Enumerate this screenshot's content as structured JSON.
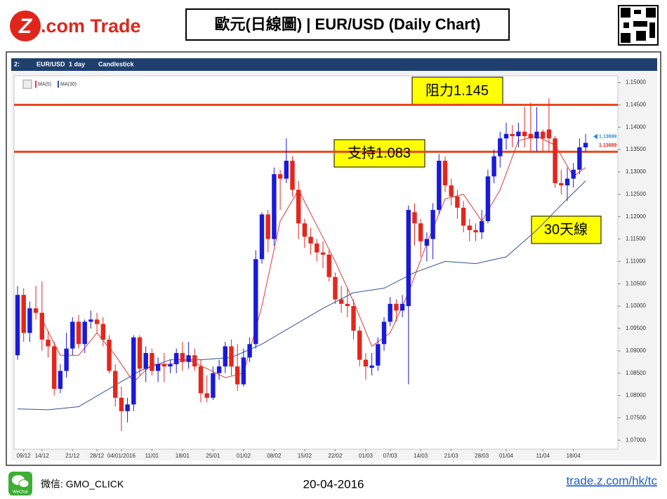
{
  "header": {
    "logo_mark": "Z",
    "logo_text": ".com Trade",
    "title": "歐元(日線圖) | EUR/USD  (Daily Chart)"
  },
  "toolbar": [
    "2:",
    "EUR/USD",
    "1 day",
    "Candlestick"
  ],
  "chart_data": {
    "type": "candlestick",
    "categories": [
      null,
      "09/12",
      null,
      null,
      "14/12",
      null,
      null,
      null,
      null,
      "21/12",
      null,
      null,
      null,
      "28/12",
      null,
      null,
      null,
      "04/01/2016",
      null,
      null,
      null,
      null,
      "11/01",
      null,
      null,
      null,
      null,
      "18/01",
      null,
      null,
      null,
      null,
      "25/01",
      null,
      null,
      null,
      null,
      "01/02",
      null,
      null,
      null,
      null,
      "08/02",
      null,
      null,
      null,
      null,
      "15/02",
      null,
      null,
      null,
      null,
      "22/02",
      null,
      null,
      null,
      null,
      "01/03",
      null,
      null,
      null,
      "07/03",
      null,
      null,
      null,
      null,
      "14/03",
      null,
      null,
      null,
      null,
      "21/03",
      null,
      null,
      null,
      null,
      "28/03",
      null,
      null,
      null,
      "01/04",
      null,
      null,
      null,
      null,
      null,
      "11/04",
      null,
      null,
      null,
      null,
      "18/04",
      null,
      null
    ],
    "candles": {
      "up_color": "#1a1ad8",
      "down_color": "#e5261c",
      "open": [
        1.089,
        1.1025,
        1.094,
        1.0995,
        1.0985,
        1.0925,
        1.091,
        1.0815,
        1.0855,
        1.0905,
        1.0965,
        1.0915,
        1.0965,
        1.097,
        1.096,
        1.0925,
        1.0855,
        1.0795,
        1.0765,
        1.078,
        1.093,
        1.086,
        1.0895,
        1.0855,
        1.087,
        1.0865,
        1.087,
        1.0895,
        1.0875,
        1.089,
        1.0865,
        1.0805,
        1.0795,
        1.085,
        1.0865,
        1.091,
        1.0865,
        1.0825,
        1.0885,
        1.0915,
        1.1105,
        1.1205,
        1.115,
        1.1295,
        1.1285,
        1.1325,
        1.126,
        1.1185,
        1.1155,
        1.114,
        1.112,
        1.1115,
        1.1065,
        1.1015,
        1.1005,
        1.1,
        1.0945,
        1.088,
        1.0862,
        1.0867,
        1.0915,
        1.0965,
        1.1005,
        1.099,
        1.1,
        1.121,
        1.1185,
        1.1135,
        1.115,
        1.1215,
        1.1325,
        1.127,
        1.1245,
        1.122,
        1.118,
        1.117,
        1.1165,
        1.119,
        1.129,
        1.1335,
        1.1375,
        1.1385,
        1.138,
        1.139,
        1.1385,
        1.1375,
        1.139,
        1.1395,
        1.1375,
        1.1275,
        1.127,
        1.1285,
        1.1305,
        1.1355
      ],
      "high": [
        1.1045,
        1.104,
        1.101,
        1.1045,
        1.1055,
        1.0945,
        1.092,
        1.087,
        1.094,
        1.0975,
        1.098,
        1.097,
        1.099,
        1.0985,
        1.0975,
        1.0935,
        1.087,
        1.082,
        1.0795,
        1.0935,
        1.0935,
        1.091,
        1.0905,
        1.0885,
        1.0895,
        1.088,
        1.0905,
        1.092,
        1.092,
        1.0905,
        1.088,
        1.0845,
        1.0865,
        1.088,
        1.092,
        1.0925,
        1.0915,
        1.0905,
        1.093,
        1.1125,
        1.121,
        1.1215,
        1.131,
        1.1305,
        1.1375,
        1.1335,
        1.128,
        1.1195,
        1.1175,
        1.115,
        1.1145,
        1.1125,
        1.1075,
        1.1045,
        1.104,
        1.1015,
        1.0955,
        1.0895,
        1.0895,
        1.093,
        1.0975,
        1.102,
        1.1015,
        1.1025,
        1.1225,
        1.123,
        1.1195,
        1.1165,
        1.123,
        1.134,
        1.1335,
        1.1285,
        1.126,
        1.1235,
        1.1195,
        1.1185,
        1.1215,
        1.1305,
        1.135,
        1.139,
        1.141,
        1.1405,
        1.141,
        1.1445,
        1.1455,
        1.1445,
        1.1395,
        1.1465,
        1.138,
        1.1305,
        1.131,
        1.132,
        1.1375,
        1.1385
      ],
      "low": [
        1.088,
        1.092,
        1.092,
        1.097,
        1.09,
        1.0885,
        1.08,
        1.0805,
        1.084,
        1.089,
        1.0905,
        1.0895,
        1.095,
        1.094,
        1.091,
        1.085,
        1.0775,
        1.072,
        1.074,
        1.0765,
        1.0845,
        1.083,
        1.0845,
        1.083,
        1.083,
        1.085,
        1.085,
        1.0855,
        1.086,
        1.0855,
        1.0785,
        1.0785,
        1.079,
        1.0835,
        1.085,
        1.0845,
        1.081,
        1.082,
        1.0875,
        1.0905,
        1.1095,
        1.112,
        1.1135,
        1.1215,
        1.1275,
        1.1245,
        1.115,
        1.113,
        1.1115,
        1.11,
        1.1085,
        1.1055,
        1.1005,
        1.0985,
        1.0975,
        1.0925,
        1.0865,
        1.0835,
        1.0845,
        1.0855,
        1.09,
        1.0955,
        1.0965,
        1.0975,
        1.0825,
        1.1135,
        1.111,
        1.11,
        1.1105,
        1.1205,
        1.1255,
        1.1225,
        1.1195,
        1.1165,
        1.1145,
        1.1145,
        1.115,
        1.1185,
        1.1275,
        1.131,
        1.135,
        1.1355,
        1.1355,
        1.1355,
        1.1345,
        1.1345,
        1.1345,
        1.1345,
        1.1265,
        1.125,
        1.1235,
        1.1265,
        1.1295,
        1.1345
      ],
      "close": [
        1.1025,
        1.094,
        1.0995,
        1.0985,
        1.0925,
        1.091,
        1.0815,
        1.0855,
        1.0905,
        1.0965,
        1.0915,
        1.0965,
        1.097,
        1.096,
        1.0925,
        1.0855,
        1.0795,
        1.0765,
        1.078,
        1.093,
        1.086,
        1.0895,
        1.0855,
        1.087,
        1.0865,
        1.087,
        1.0895,
        1.0875,
        1.089,
        1.0865,
        1.0805,
        1.0795,
        1.085,
        1.0865,
        1.091,
        1.0865,
        1.0825,
        1.0885,
        1.0915,
        1.1105,
        1.1205,
        1.115,
        1.1295,
        1.1285,
        1.1325,
        1.126,
        1.1185,
        1.1155,
        1.114,
        1.112,
        1.1115,
        1.1065,
        1.1015,
        1.1005,
        1.1,
        1.0945,
        1.088,
        1.0865,
        1.0867,
        1.0915,
        1.0965,
        1.1005,
        1.099,
        1.1005,
        1.1215,
        1.1185,
        1.1145,
        1.115,
        1.1215,
        1.1325,
        1.127,
        1.1245,
        1.122,
        1.118,
        1.117,
        1.1165,
        1.119,
        1.129,
        1.1335,
        1.1375,
        1.1385,
        1.138,
        1.139,
        1.138,
        1.1375,
        1.139,
        1.1375,
        1.1375,
        1.1275,
        1.127,
        1.1285,
        1.1305,
        1.1355,
        1.1365
      ]
    },
    "series": [
      {
        "name": "MA(5)",
        "color": "#e03a3a",
        "x": [
          4,
          7,
          10,
          13,
          16,
          19,
          22,
          25,
          28,
          31,
          34,
          37,
          40,
          43,
          46,
          49,
          52,
          55,
          58,
          61,
          64,
          67,
          70,
          73,
          76,
          79,
          82,
          85,
          88,
          91,
          93
        ],
        "values": [
          1.097,
          1.089,
          1.089,
          1.094,
          1.089,
          1.083,
          1.087,
          1.087,
          1.088,
          1.086,
          1.084,
          1.085,
          1.1,
          1.119,
          1.126,
          1.118,
          1.11,
          1.101,
          1.091,
          1.094,
          1.103,
          1.114,
          1.124,
          1.125,
          1.119,
          1.126,
          1.137,
          1.138,
          1.136,
          1.129,
          1.131
        ]
      },
      {
        "name": "MA(30)",
        "color": "#2f5597",
        "x": [
          0,
          5,
          10,
          15,
          20,
          25,
          30,
          35,
          40,
          45,
          50,
          55,
          60,
          65,
          70,
          75,
          80,
          85,
          90,
          93
        ],
        "values": [
          1.077,
          1.0768,
          1.0775,
          1.0815,
          1.0855,
          1.088,
          1.088,
          1.0885,
          1.0915,
          1.0955,
          1.0995,
          1.103,
          1.104,
          1.1075,
          1.11,
          1.1095,
          1.111,
          1.117,
          1.124,
          1.128
        ]
      }
    ],
    "hlines": [
      {
        "value": 1.145,
        "color": "#e8461c"
      },
      {
        "value": 1.1345,
        "color": "#e8461c"
      }
    ],
    "annotations": [
      "阻力1.145",
      "支持1.083",
      "30天線"
    ],
    "price_tags": [
      {
        "value": 1.13699,
        "color": "#2a8fd0"
      },
      {
        "value": 1.13689,
        "color": "#e5261c"
      }
    ],
    "ylim": [
      1.068,
      1.1515
    ],
    "yticks": [
      {
        "value": 1.07,
        "label": "1.07000"
      },
      {
        "value": 1.075,
        "label": "1.07500"
      },
      {
        "value": 1.08,
        "label": "1.08000"
      },
      {
        "value": 1.085,
        "label": "1.08500"
      },
      {
        "value": 1.09,
        "label": "1.09000"
      },
      {
        "value": 1.095,
        "label": "1.09500"
      },
      {
        "value": 1.1,
        "label": "1.10000"
      },
      {
        "value": 1.105,
        "label": "1.10500"
      },
      {
        "value": 1.11,
        "label": "1.11000"
      },
      {
        "value": 1.115,
        "label": "1.11500"
      },
      {
        "value": 1.12,
        "label": "1.12000"
      },
      {
        "value": 1.125,
        "label": "1.12500"
      },
      {
        "value": 1.13,
        "label": "1.13000"
      },
      {
        "value": 1.135,
        "label": "1.13500"
      },
      {
        "value": 1.14,
        "label": "1.14000"
      },
      {
        "value": 1.145,
        "label": "1.14500"
      },
      {
        "value": 1.15,
        "label": "1.15000"
      }
    ]
  },
  "footer": {
    "wechat_icon": "WeChat",
    "wechat": "微信: GMO_CLICK",
    "date": "20-04-2016",
    "url": "trade.z.com/hk/tc"
  }
}
